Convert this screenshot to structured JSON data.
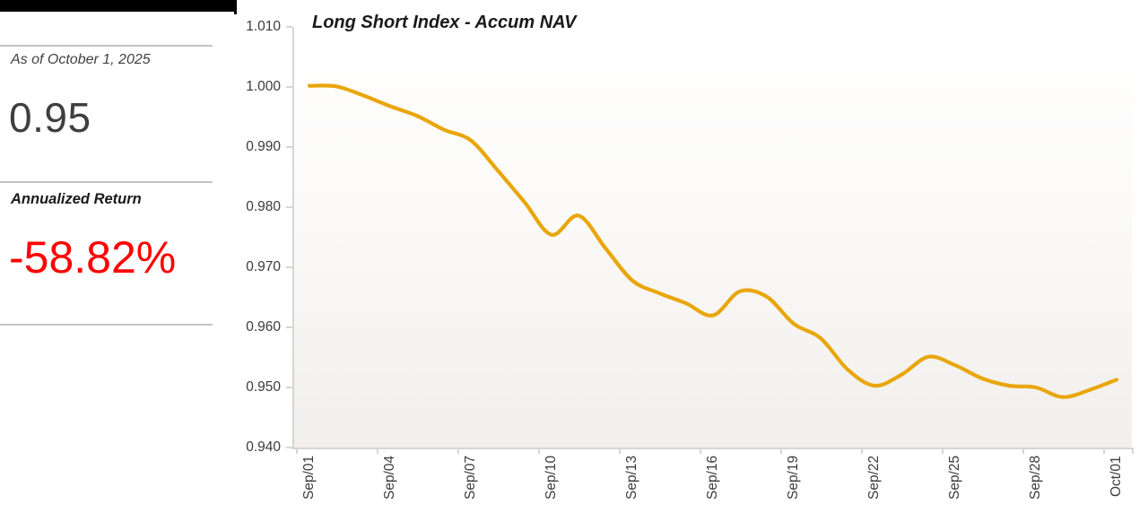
{
  "panel": {
    "as_of_label": "As of October 1, 2025",
    "nav_value": "0.95",
    "annualized_label": "Annualized Return",
    "annualized_value": "-58.82%"
  },
  "colors": {
    "line": "#E9A60B",
    "negative_value": "#FF0000",
    "nav_value_text": "#3F3F3F",
    "axis": "#D6D6D6",
    "top_bar": "#000000"
  },
  "chart_data": {
    "type": "line",
    "title": "Long Short Index - Accum NAV",
    "x": [
      "Sep/01",
      "Sep/02",
      "Sep/03",
      "Sep/04",
      "Sep/05",
      "Sep/06",
      "Sep/07",
      "Sep/08",
      "Sep/09",
      "Sep/10",
      "Sep/11",
      "Sep/12",
      "Sep/13",
      "Sep/14",
      "Sep/15",
      "Sep/16",
      "Sep/17",
      "Sep/18",
      "Sep/19",
      "Sep/20",
      "Sep/21",
      "Sep/22",
      "Sep/23",
      "Sep/24",
      "Sep/25",
      "Sep/26",
      "Sep/27",
      "Sep/28",
      "Sep/29",
      "Sep/30",
      "Oct/01"
    ],
    "series": [
      {
        "name": "Long Short Index Accum NAV",
        "values": [
          1.0002,
          1.0001,
          0.9986,
          0.9968,
          0.9952,
          0.9929,
          0.9911,
          0.9861,
          0.9808,
          0.9754,
          0.9786,
          0.9732,
          0.9678,
          0.9657,
          0.964,
          0.962,
          0.966,
          0.9651,
          0.9606,
          0.9582,
          0.953,
          0.9503,
          0.9521,
          0.9551,
          0.9537,
          0.9515,
          0.9503,
          0.95,
          0.9484,
          0.9496,
          0.9513
        ]
      }
    ],
    "x_tick_labels": [
      "Sep/01",
      "Sep/04",
      "Sep/07",
      "Sep/10",
      "Sep/13",
      "Sep/16",
      "Sep/19",
      "Sep/22",
      "Sep/25",
      "Sep/28",
      "Oct/01"
    ],
    "x_tick_every": 3,
    "y_tick_labels": [
      "1.010",
      "1.000",
      "0.990",
      "0.980",
      "0.970",
      "0.960",
      "0.950",
      "0.940"
    ],
    "ylim": [
      0.94,
      1.01
    ],
    "xlabel": "",
    "ylabel": "",
    "grid": false,
    "legend": false,
    "smooth": true
  }
}
